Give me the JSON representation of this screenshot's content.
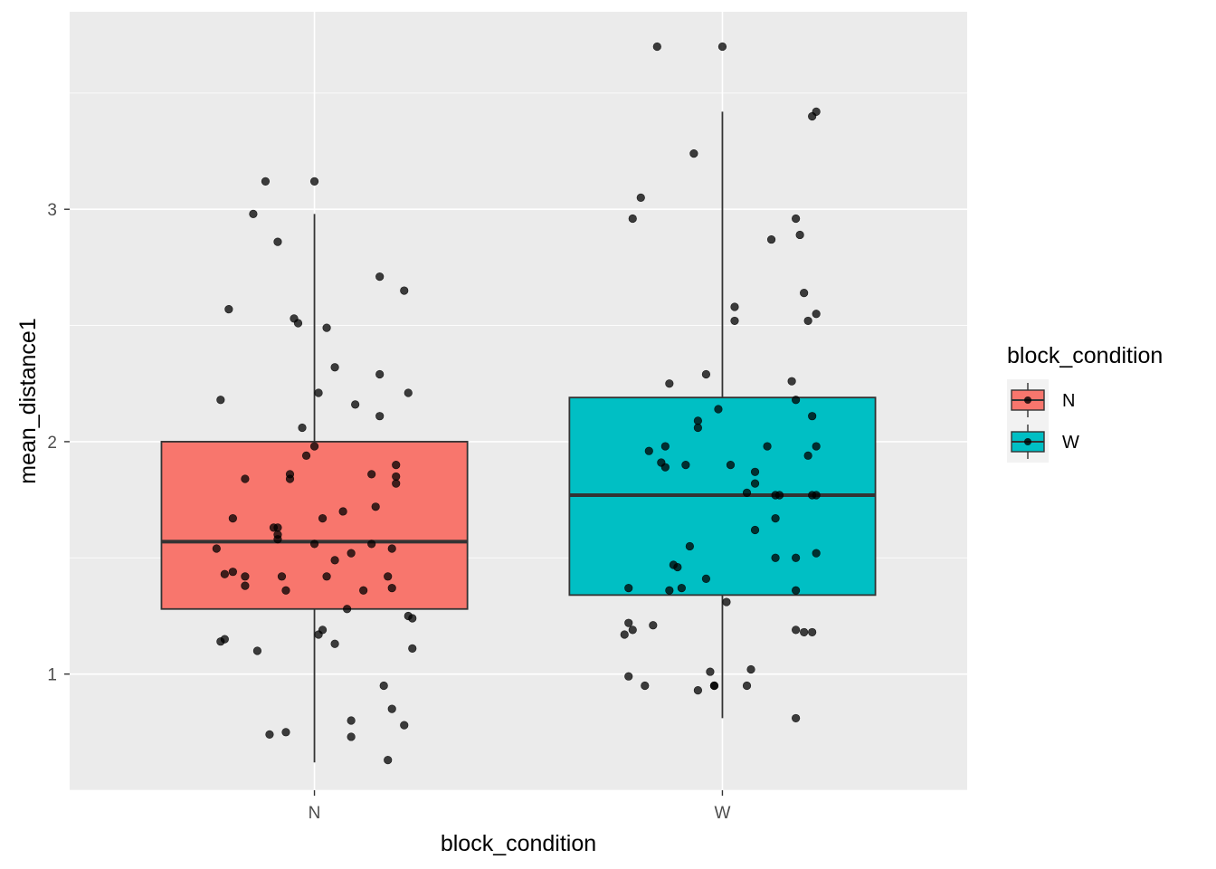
{
  "chart_data": {
    "type": "boxplot",
    "xlabel": "block_condition",
    "ylabel": "mean_distance1",
    "categories": [
      "N",
      "W"
    ],
    "y_ticks": [
      1,
      2,
      3
    ],
    "ylim": [
      0.5,
      3.85
    ],
    "grid": true,
    "legend": {
      "title": "block_condition",
      "placement": "right",
      "entries": [
        {
          "label": "N",
          "color": "#F8766D"
        },
        {
          "label": "W",
          "color": "#00BFC4"
        }
      ]
    },
    "boxes": [
      {
        "category": "N",
        "color": "#F8766D",
        "whisker_low": 0.62,
        "q1": 1.28,
        "median": 1.57,
        "q3": 2.0,
        "whisker_high": 2.98
      },
      {
        "category": "W",
        "color": "#00BFC4",
        "whisker_low": 0.81,
        "q1": 1.34,
        "median": 1.77,
        "q3": 2.19,
        "whisker_high": 3.42
      }
    ],
    "points": [
      {
        "category": "N",
        "jitter": -0.12,
        "y": 3.12
      },
      {
        "category": "N",
        "jitter": 0.0,
        "y": 3.12
      },
      {
        "category": "N",
        "jitter": -0.15,
        "y": 2.98
      },
      {
        "category": "N",
        "jitter": -0.09,
        "y": 2.86
      },
      {
        "category": "N",
        "jitter": 0.16,
        "y": 2.71
      },
      {
        "category": "N",
        "jitter": 0.22,
        "y": 2.65
      },
      {
        "category": "N",
        "jitter": -0.21,
        "y": 2.57
      },
      {
        "category": "N",
        "jitter": -0.05,
        "y": 2.53
      },
      {
        "category": "N",
        "jitter": -0.04,
        "y": 2.51
      },
      {
        "category": "N",
        "jitter": 0.03,
        "y": 2.49
      },
      {
        "category": "N",
        "jitter": 0.05,
        "y": 2.32
      },
      {
        "category": "N",
        "jitter": 0.16,
        "y": 2.29
      },
      {
        "category": "N",
        "jitter": 0.23,
        "y": 2.21
      },
      {
        "category": "N",
        "jitter": 0.01,
        "y": 2.21
      },
      {
        "category": "N",
        "jitter": -0.23,
        "y": 2.18
      },
      {
        "category": "N",
        "jitter": 0.1,
        "y": 2.16
      },
      {
        "category": "N",
        "jitter": 0.16,
        "y": 2.11
      },
      {
        "category": "N",
        "jitter": -0.03,
        "y": 2.06
      },
      {
        "category": "N",
        "jitter": 0.0,
        "y": 1.98
      },
      {
        "category": "N",
        "jitter": -0.02,
        "y": 1.94
      },
      {
        "category": "N",
        "jitter": 0.2,
        "y": 1.9
      },
      {
        "category": "N",
        "jitter": -0.06,
        "y": 1.86
      },
      {
        "category": "N",
        "jitter": 0.14,
        "y": 1.86
      },
      {
        "category": "N",
        "jitter": 0.2,
        "y": 1.85
      },
      {
        "category": "N",
        "jitter": -0.17,
        "y": 1.84
      },
      {
        "category": "N",
        "jitter": -0.06,
        "y": 1.84
      },
      {
        "category": "N",
        "jitter": 0.2,
        "y": 1.82
      },
      {
        "category": "N",
        "jitter": 0.15,
        "y": 1.72
      },
      {
        "category": "N",
        "jitter": 0.07,
        "y": 1.7
      },
      {
        "category": "N",
        "jitter": 0.02,
        "y": 1.67
      },
      {
        "category": "N",
        "jitter": -0.2,
        "y": 1.67
      },
      {
        "category": "N",
        "jitter": -0.1,
        "y": 1.63
      },
      {
        "category": "N",
        "jitter": -0.09,
        "y": 1.63
      },
      {
        "category": "N",
        "jitter": -0.09,
        "y": 1.6
      },
      {
        "category": "N",
        "jitter": -0.09,
        "y": 1.58
      },
      {
        "category": "N",
        "jitter": 0.0,
        "y": 1.56
      },
      {
        "category": "N",
        "jitter": 0.14,
        "y": 1.56
      },
      {
        "category": "N",
        "jitter": -0.24,
        "y": 1.54
      },
      {
        "category": "N",
        "jitter": 0.19,
        "y": 1.54
      },
      {
        "category": "N",
        "jitter": 0.09,
        "y": 1.52
      },
      {
        "category": "N",
        "jitter": 0.05,
        "y": 1.49
      },
      {
        "category": "N",
        "jitter": -0.2,
        "y": 1.44
      },
      {
        "category": "N",
        "jitter": -0.22,
        "y": 1.43
      },
      {
        "category": "N",
        "jitter": -0.08,
        "y": 1.42
      },
      {
        "category": "N",
        "jitter": -0.17,
        "y": 1.42
      },
      {
        "category": "N",
        "jitter": 0.03,
        "y": 1.42
      },
      {
        "category": "N",
        "jitter": 0.18,
        "y": 1.42
      },
      {
        "category": "N",
        "jitter": -0.17,
        "y": 1.38
      },
      {
        "category": "N",
        "jitter": 0.19,
        "y": 1.37
      },
      {
        "category": "N",
        "jitter": -0.07,
        "y": 1.36
      },
      {
        "category": "N",
        "jitter": 0.12,
        "y": 1.36
      },
      {
        "category": "N",
        "jitter": 0.08,
        "y": 1.28
      },
      {
        "category": "N",
        "jitter": 0.23,
        "y": 1.25
      },
      {
        "category": "N",
        "jitter": 0.24,
        "y": 1.24
      },
      {
        "category": "N",
        "jitter": 0.02,
        "y": 1.19
      },
      {
        "category": "N",
        "jitter": 0.01,
        "y": 1.17
      },
      {
        "category": "N",
        "jitter": -0.22,
        "y": 1.15
      },
      {
        "category": "N",
        "jitter": -0.23,
        "y": 1.14
      },
      {
        "category": "N",
        "jitter": 0.05,
        "y": 1.13
      },
      {
        "category": "N",
        "jitter": 0.24,
        "y": 1.11
      },
      {
        "category": "N",
        "jitter": -0.14,
        "y": 1.1
      },
      {
        "category": "N",
        "jitter": 0.17,
        "y": 0.95
      },
      {
        "category": "N",
        "jitter": 0.19,
        "y": 0.85
      },
      {
        "category": "N",
        "jitter": 0.09,
        "y": 0.8
      },
      {
        "category": "N",
        "jitter": 0.22,
        "y": 0.78
      },
      {
        "category": "N",
        "jitter": -0.07,
        "y": 0.75
      },
      {
        "category": "N",
        "jitter": -0.11,
        "y": 0.74
      },
      {
        "category": "N",
        "jitter": 0.09,
        "y": 0.73
      },
      {
        "category": "N",
        "jitter": 0.18,
        "y": 0.63
      },
      {
        "category": "W",
        "jitter": -0.16,
        "y": 3.7
      },
      {
        "category": "W",
        "jitter": 0.0,
        "y": 3.7
      },
      {
        "category": "W",
        "jitter": 0.23,
        "y": 3.42
      },
      {
        "category": "W",
        "jitter": 0.22,
        "y": 3.4
      },
      {
        "category": "W",
        "jitter": -0.07,
        "y": 3.24
      },
      {
        "category": "W",
        "jitter": -0.2,
        "y": 3.05
      },
      {
        "category": "W",
        "jitter": -0.22,
        "y": 2.96
      },
      {
        "category": "W",
        "jitter": 0.18,
        "y": 2.96
      },
      {
        "category": "W",
        "jitter": 0.19,
        "y": 2.89
      },
      {
        "category": "W",
        "jitter": 0.12,
        "y": 2.87
      },
      {
        "category": "W",
        "jitter": 0.2,
        "y": 2.64
      },
      {
        "category": "W",
        "jitter": 0.03,
        "y": 2.58
      },
      {
        "category": "W",
        "jitter": 0.23,
        "y": 2.55
      },
      {
        "category": "W",
        "jitter": 0.03,
        "y": 2.52
      },
      {
        "category": "W",
        "jitter": 0.21,
        "y": 2.52
      },
      {
        "category": "W",
        "jitter": -0.04,
        "y": 2.29
      },
      {
        "category": "W",
        "jitter": 0.17,
        "y": 2.26
      },
      {
        "category": "W",
        "jitter": -0.13,
        "y": 2.25
      },
      {
        "category": "W",
        "jitter": 0.18,
        "y": 2.18
      },
      {
        "category": "W",
        "jitter": -0.01,
        "y": 2.14
      },
      {
        "category": "W",
        "jitter": 0.22,
        "y": 2.11
      },
      {
        "category": "W",
        "jitter": -0.06,
        "y": 2.09
      },
      {
        "category": "W",
        "jitter": -0.06,
        "y": 2.06
      },
      {
        "category": "W",
        "jitter": 0.11,
        "y": 1.98
      },
      {
        "category": "W",
        "jitter": 0.23,
        "y": 1.98
      },
      {
        "category": "W",
        "jitter": -0.14,
        "y": 1.98
      },
      {
        "category": "W",
        "jitter": -0.18,
        "y": 1.96
      },
      {
        "category": "W",
        "jitter": 0.21,
        "y": 1.94
      },
      {
        "category": "W",
        "jitter": -0.15,
        "y": 1.91
      },
      {
        "category": "W",
        "jitter": -0.09,
        "y": 1.9
      },
      {
        "category": "W",
        "jitter": 0.02,
        "y": 1.9
      },
      {
        "category": "W",
        "jitter": -0.14,
        "y": 1.89
      },
      {
        "category": "W",
        "jitter": 0.08,
        "y": 1.87
      },
      {
        "category": "W",
        "jitter": 0.08,
        "y": 1.82
      },
      {
        "category": "W",
        "jitter": 0.06,
        "y": 1.78
      },
      {
        "category": "W",
        "jitter": 0.13,
        "y": 1.77
      },
      {
        "category": "W",
        "jitter": 0.14,
        "y": 1.77
      },
      {
        "category": "W",
        "jitter": 0.23,
        "y": 1.77
      },
      {
        "category": "W",
        "jitter": 0.22,
        "y": 1.77
      },
      {
        "category": "W",
        "jitter": 0.13,
        "y": 1.67
      },
      {
        "category": "W",
        "jitter": 0.08,
        "y": 1.62
      },
      {
        "category": "W",
        "jitter": -0.08,
        "y": 1.55
      },
      {
        "category": "W",
        "jitter": 0.18,
        "y": 1.5
      },
      {
        "category": "W",
        "jitter": 0.13,
        "y": 1.5
      },
      {
        "category": "W",
        "jitter": 0.23,
        "y": 1.52
      },
      {
        "category": "W",
        "jitter": -0.12,
        "y": 1.47
      },
      {
        "category": "W",
        "jitter": -0.11,
        "y": 1.46
      },
      {
        "category": "W",
        "jitter": -0.04,
        "y": 1.41
      },
      {
        "category": "W",
        "jitter": -0.23,
        "y": 1.37
      },
      {
        "category": "W",
        "jitter": -0.1,
        "y": 1.37
      },
      {
        "category": "W",
        "jitter": -0.13,
        "y": 1.36
      },
      {
        "category": "W",
        "jitter": 0.18,
        "y": 1.36
      },
      {
        "category": "W",
        "jitter": 0.01,
        "y": 1.31
      },
      {
        "category": "W",
        "jitter": -0.23,
        "y": 1.22
      },
      {
        "category": "W",
        "jitter": -0.17,
        "y": 1.21
      },
      {
        "category": "W",
        "jitter": -0.22,
        "y": 1.19
      },
      {
        "category": "W",
        "jitter": -0.24,
        "y": 1.17
      },
      {
        "category": "W",
        "jitter": 0.18,
        "y": 1.19
      },
      {
        "category": "W",
        "jitter": 0.2,
        "y": 1.18
      },
      {
        "category": "W",
        "jitter": 0.22,
        "y": 1.18
      },
      {
        "category": "W",
        "jitter": 0.07,
        "y": 1.02
      },
      {
        "category": "W",
        "jitter": -0.03,
        "y": 1.01
      },
      {
        "category": "W",
        "jitter": -0.23,
        "y": 0.99
      },
      {
        "category": "W",
        "jitter": -0.19,
        "y": 0.95
      },
      {
        "category": "W",
        "jitter": -0.02,
        "y": 0.95
      },
      {
        "category": "W",
        "jitter": -0.02,
        "y": 0.95
      },
      {
        "category": "W",
        "jitter": 0.06,
        "y": 0.95
      },
      {
        "category": "W",
        "jitter": -0.06,
        "y": 0.93
      },
      {
        "category": "W",
        "jitter": 0.18,
        "y": 0.81
      }
    ]
  }
}
